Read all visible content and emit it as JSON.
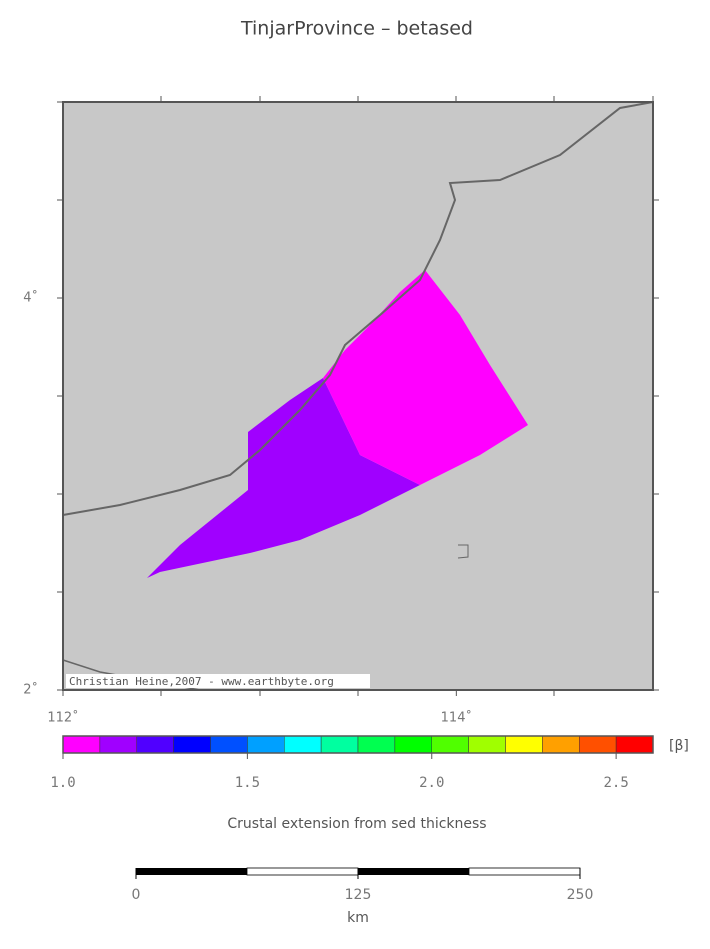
{
  "title": "TinjarProvince – betased",
  "map": {
    "xlim": [
      112,
      115
    ],
    "ylim": [
      2,
      5
    ],
    "xticks": [
      {
        "value": 112,
        "label": "112˚"
      },
      {
        "value": 114,
        "label": "114˚"
      }
    ],
    "yticks": [
      {
        "value": 2,
        "label": "2˚"
      },
      {
        "value": 4,
        "label": "4˚"
      }
    ],
    "credit": "Christian Heine,2007 - www.earthbyte.org"
  },
  "colorbar": {
    "lim": [
      1.0,
      2.6
    ],
    "ticks": [
      {
        "value": 1.0,
        "label": "1.0"
      },
      {
        "value": 1.5,
        "label": "1.5"
      },
      {
        "value": 2.0,
        "label": "2.0"
      },
      {
        "value": 2.5,
        "label": "2.5"
      }
    ],
    "colors": [
      "#ff00ff",
      "#a000ff",
      "#5000ff",
      "#0000ff",
      "#0050ff",
      "#00a0ff",
      "#00ffff",
      "#00ffa0",
      "#00ff50",
      "#00ff00",
      "#50ff00",
      "#a0ff00",
      "#ffff00",
      "#ffa000",
      "#ff5000",
      "#ff0000"
    ],
    "unit": "[β]",
    "caption": "Crustal extension from sed thickness"
  },
  "scalebar": {
    "lim": [
      0,
      250
    ],
    "ticks": [
      0,
      125,
      250
    ],
    "unit": "km"
  }
}
